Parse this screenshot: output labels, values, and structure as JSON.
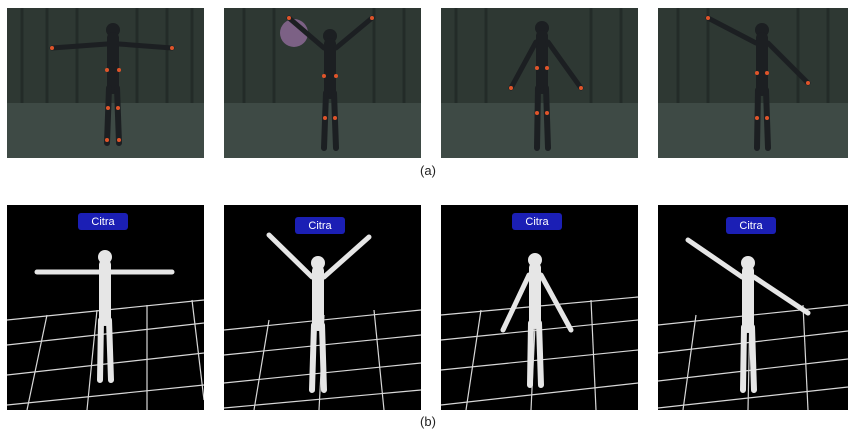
{
  "figure": {
    "caption_a": "(a)",
    "caption_b": "(b)",
    "avatar_label": "Citra",
    "poses": [
      "t-pose",
      "arms-raised-v",
      "arms-down",
      "one-arm-raised-diagonal"
    ]
  },
  "colors": {
    "curtain": "#2e3833",
    "floor": "#3e4a45",
    "suit": "#1c1f22",
    "marker": "#e0542a",
    "render_bg": "#000000",
    "grid": "#d8d8d8",
    "avatar": "#e6e6e6",
    "badge": "#1b1fb5"
  }
}
